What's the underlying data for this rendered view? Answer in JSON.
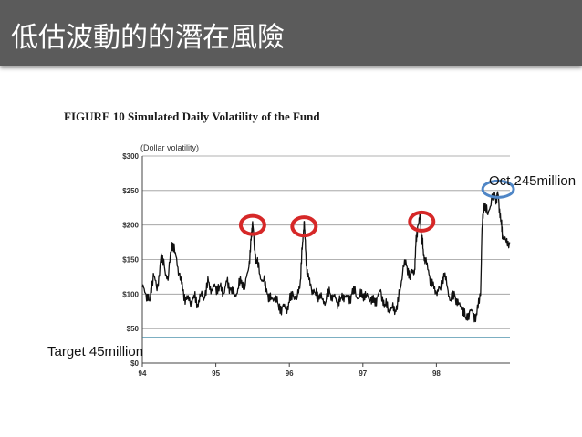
{
  "slide": {
    "title": "低估波動的的潛在風險"
  },
  "annotations": {
    "target": "Target 45million",
    "oct": "Oct 245million"
  },
  "colors": {
    "header_bg": "#5b5b5b",
    "series": "#111111",
    "target_line": "#2f7f9e",
    "circle_red": "#d62828",
    "circle_blue": "#4f86c6"
  },
  "chart_data": {
    "type": "line",
    "title": "FIGURE 10 Simulated Daily Volatility of the Fund",
    "ylabel": "(Dollar volatility)",
    "xlabel": "",
    "ylim": [
      0,
      300
    ],
    "xlim": [
      94,
      99
    ],
    "y_ticks": [
      {
        "value": 0,
        "label": "$0"
      },
      {
        "value": 50,
        "label": "$50"
      },
      {
        "value": 100,
        "label": "$100"
      },
      {
        "value": 150,
        "label": "$150"
      },
      {
        "value": 200,
        "label": "$200"
      },
      {
        "value": 250,
        "label": "$250"
      },
      {
        "value": 300,
        "label": "$300"
      }
    ],
    "x_ticks": [
      {
        "value": 94,
        "label": "94"
      },
      {
        "value": 95,
        "label": "95"
      },
      {
        "value": 96,
        "label": "96"
      },
      {
        "value": 97,
        "label": "97"
      },
      {
        "value": 98,
        "label": "98"
      }
    ],
    "grid": "horizontal",
    "series": [
      {
        "x": [
          94.0,
          94.05,
          94.1,
          94.15,
          94.2,
          94.25,
          94.3,
          94.35,
          94.4,
          94.45,
          94.5,
          94.55,
          94.6,
          94.65,
          94.7,
          94.75,
          94.8,
          94.85,
          94.9,
          94.95,
          95.0,
          95.05,
          95.1,
          95.15,
          95.2,
          95.25,
          95.3,
          95.35,
          95.4,
          95.45,
          95.48,
          95.5,
          95.52,
          95.55,
          95.6,
          95.65,
          95.7,
          95.75,
          95.8,
          95.85,
          95.9,
          95.95,
          96.0,
          96.05,
          96.1,
          96.15,
          96.18,
          96.2,
          96.22,
          96.25,
          96.3,
          96.35,
          96.4,
          96.45,
          96.5,
          96.55,
          96.6,
          96.65,
          96.7,
          96.75,
          96.8,
          96.85,
          96.9,
          96.95,
          97.0,
          97.05,
          97.1,
          97.15,
          97.2,
          97.25,
          97.3,
          97.35,
          97.4,
          97.45,
          97.5,
          97.55,
          97.6,
          97.65,
          97.7,
          97.72,
          97.75,
          97.78,
          97.8,
          97.82,
          97.85,
          97.9,
          97.95,
          98.0,
          98.05,
          98.1,
          98.15,
          98.2,
          98.25,
          98.3,
          98.35,
          98.4,
          98.45,
          98.5,
          98.55,
          98.6,
          98.62,
          98.65,
          98.7,
          98.75,
          98.8,
          98.83,
          98.85,
          98.88,
          98.9,
          98.95,
          99.0
        ],
        "y": [
          110,
          100,
          90,
          130,
          105,
          150,
          140,
          120,
          175,
          160,
          130,
          105,
          92,
          88,
          98,
          85,
          100,
          95,
          118,
          105,
          110,
          112,
          100,
          118,
          106,
          98,
          108,
          120,
          112,
          140,
          178,
          205,
          175,
          150,
          128,
          120,
          100,
          92,
          95,
          85,
          80,
          78,
          88,
          100,
          92,
          120,
          175,
          205,
          165,
          125,
          108,
          102,
          98,
          92,
          90,
          102,
          96,
          88,
          94,
          98,
          92,
          100,
          102,
          95,
          100,
          98,
          92,
          88,
          96,
          102,
          85,
          78,
          80,
          75,
          100,
          142,
          140,
          128,
          130,
          170,
          200,
          212,
          180,
          165,
          148,
          128,
          112,
          102,
          108,
          130,
          110,
          90,
          98,
          85,
          80,
          65,
          75,
          70,
          70,
          98,
          195,
          232,
          215,
          238,
          238,
          245,
          232,
          205,
          185,
          175,
          175
        ]
      }
    ]
  }
}
